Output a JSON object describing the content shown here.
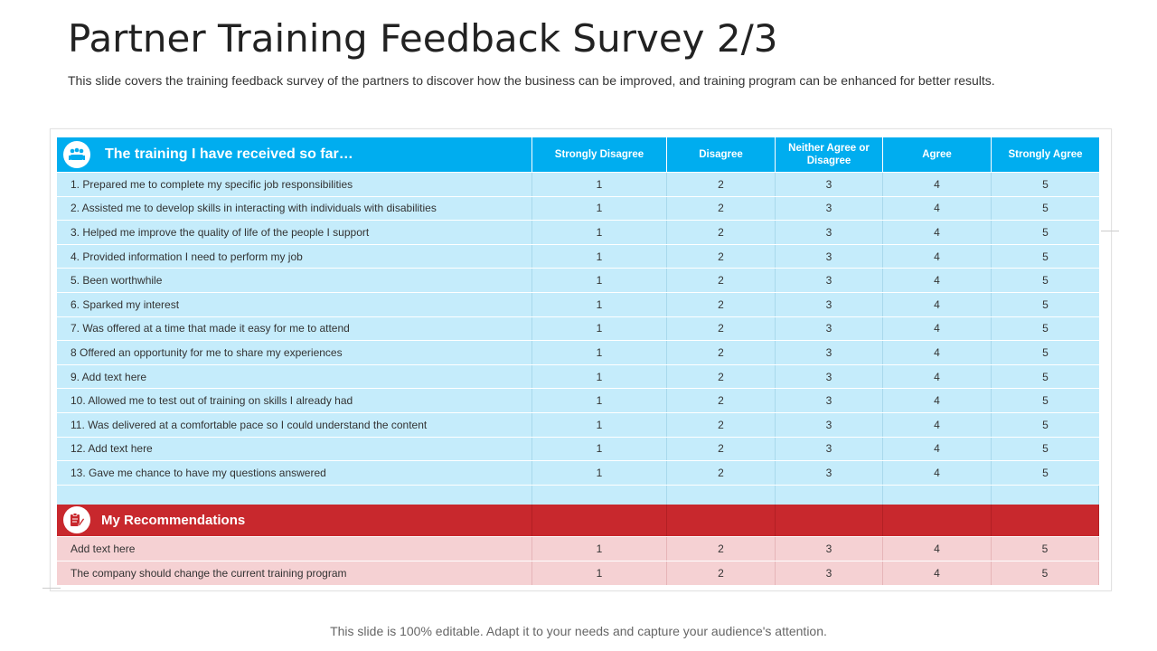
{
  "page": {
    "title": "Partner Training Feedback Survey 2/3",
    "subtitle": "This slide covers the training feedback survey of the partners to discover how the business can be improved, and training program can be enhanced for better results.",
    "footer": "This slide is 100% editable. Adapt it to your needs and capture your audience's attention."
  },
  "table": {
    "header": {
      "section_title": "The training I have received so far…",
      "columns": [
        "Strongly Disagree",
        "Disagree",
        "Neither Agree or Disagree",
        "Agree",
        "Strongly Agree"
      ]
    },
    "rows": [
      {
        "label": "1. Prepared me to complete my specific job responsibilities",
        "values": [
          "1",
          "2",
          "3",
          "4",
          "5"
        ]
      },
      {
        "label": "2. Assisted me to develop skills in interacting with individuals with disabilities",
        "values": [
          "1",
          "2",
          "3",
          "4",
          "5"
        ]
      },
      {
        "label": "3. Helped me improve the quality of life of the people I support",
        "values": [
          "1",
          "2",
          "3",
          "4",
          "5"
        ]
      },
      {
        "label": "4. Provided information I need to perform my job",
        "values": [
          "1",
          "2",
          "3",
          "4",
          "5"
        ]
      },
      {
        "label": "5. Been worthwhile",
        "values": [
          "1",
          "2",
          "3",
          "4",
          "5"
        ]
      },
      {
        "label": "6. Sparked my interest",
        "values": [
          "1",
          "2",
          "3",
          "4",
          "5"
        ]
      },
      {
        "label": "7. Was offered at a time that made it easy for me to attend",
        "values": [
          "1",
          "2",
          "3",
          "4",
          "5"
        ]
      },
      {
        "label": "8 Offered an opportunity for me to share my experiences",
        "values": [
          "1",
          "2",
          "3",
          "4",
          "5"
        ]
      },
      {
        "label": "9. Add text here",
        "values": [
          "1",
          "2",
          "3",
          "4",
          "5"
        ]
      },
      {
        "label": "10. Allowed me to test out of training on skills I already had",
        "values": [
          "1",
          "2",
          "3",
          "4",
          "5"
        ]
      },
      {
        "label": "11. Was delivered at a comfortable pace so I could understand the content",
        "values": [
          "1",
          "2",
          "3",
          "4",
          "5"
        ]
      },
      {
        "label": "12. Add text here",
        "values": [
          "1",
          "2",
          "3",
          "4",
          "5"
        ]
      },
      {
        "label": "13. Gave me chance to have my questions answered",
        "values": [
          "1",
          "2",
          "3",
          "4",
          "5"
        ]
      }
    ],
    "recommendations": {
      "section_title": "My Recommendations",
      "rows": [
        {
          "label": "Add text here",
          "values": [
            "1",
            "2",
            "3",
            "4",
            "5"
          ]
        },
        {
          "label": "The company should change the current training program",
          "values": [
            "1",
            "2",
            "3",
            "4",
            "5"
          ]
        }
      ]
    }
  },
  "colors": {
    "header_blue": "#00adef",
    "row_blue": "#c5ecfb",
    "header_red": "#c8282d",
    "row_pink": "#f5d1d3"
  },
  "icons": {
    "header_icon": "team-meeting-icon",
    "recommendations_icon": "clipboard-pen-icon"
  }
}
